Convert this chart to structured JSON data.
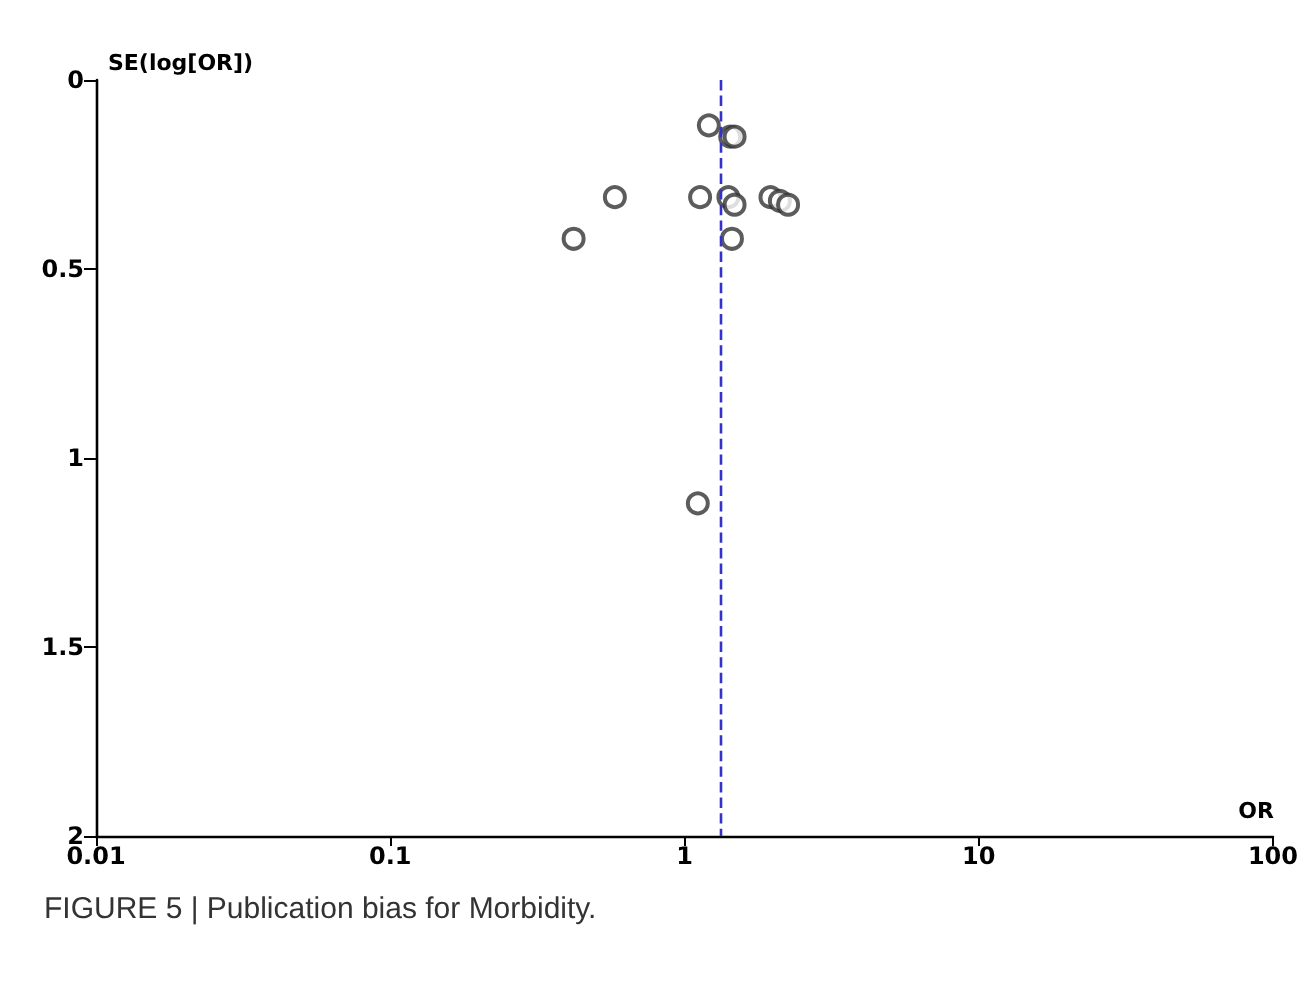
{
  "chart_data": {
    "type": "scatter",
    "xlabel": "OR",
    "ylabel": "SE(log[OR])",
    "annotations": [
      "FIGURE 5 | Publication bias for Morbidity."
    ],
    "series": [
      {
        "color": "#333333",
        "x": [
          1.21,
          1.43,
          1.48,
          0.58,
          1.13,
          1.41,
          1.48,
          1.96,
          2.11,
          2.25,
          0.42,
          1.45,
          1.11
        ],
        "values": [
          0.12,
          0.15,
          0.15,
          0.31,
          0.31,
          0.31,
          0.33,
          0.31,
          0.32,
          0.33,
          0.42,
          0.42,
          1.12
        ]
      }
    ],
    "log": "x",
    "marker": "circle",
    "grid": false,
    "xlim": [
      0.01,
      100
    ],
    "xticks": [
      0.01,
      0.1,
      1,
      10,
      100
    ],
    "ylim": [
      2,
      0
    ],
    "yticks": [
      0,
      0.5,
      1,
      1.5,
      2
    ],
    "ref_lines": [
      {
        "axis": "x",
        "value": 1.32,
        "color": "#3333cc",
        "line_style": "dashed"
      }
    ]
  }
}
